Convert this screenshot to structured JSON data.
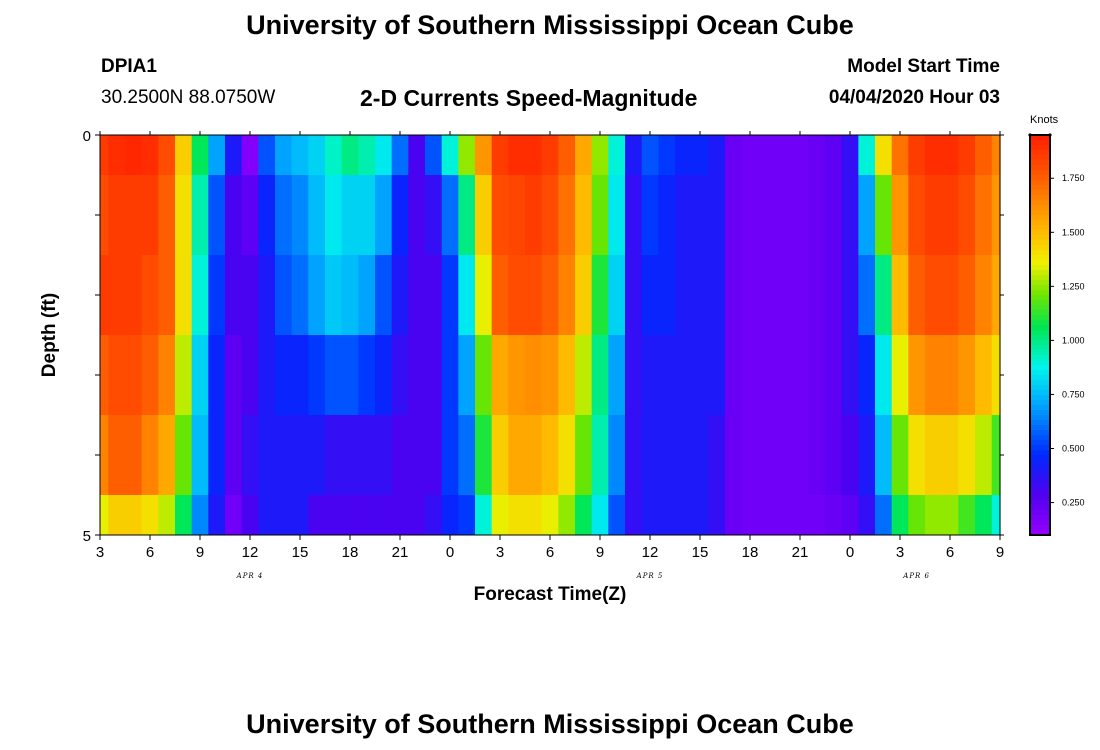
{
  "header": {
    "title": "University of Southern Mississippi Ocean Cube",
    "station": "DPIA1",
    "location": "30.2500N 88.0750W",
    "product": "2-D Currents Speed-Magnitude",
    "model_start_label": "Model Start Time",
    "model_start_time": "04/04/2020 Hour 03"
  },
  "footer": {
    "title": "University of Southern Mississippi Ocean Cube"
  },
  "colorbar": {
    "unit": "Knots",
    "ticks": [
      "0.250",
      "0.500",
      "0.750",
      "1.000",
      "1.250",
      "1.500",
      "1.750"
    ],
    "min": 0.1,
    "max": 1.95
  },
  "chart_data": {
    "type": "heatmap",
    "title": "2-D Currents Speed-Magnitude",
    "xlabel": "Forecast Time(Z)",
    "ylabel": "Depth (ft)",
    "ylim": [
      0,
      5
    ],
    "y_tick_labels": [
      "0",
      "5"
    ],
    "x_tick_labels": [
      "3",
      "6",
      "9",
      "12",
      "15",
      "18",
      "21",
      "0",
      "3",
      "6",
      "9",
      "12",
      "15",
      "18",
      "21",
      "0",
      "3",
      "6",
      "9"
    ],
    "date_labels": [
      {
        "text": "APR 4",
        "hour_index": 9
      },
      {
        "text": "APR 5",
        "hour_index": 33
      },
      {
        "text": "APR 6",
        "hour_index": 49
      }
    ],
    "x_hours_start": 3,
    "x_hours_end": 57,
    "depth_bins": [
      {
        "from": 0,
        "to": 0.5
      },
      {
        "from": 0.5,
        "to": 1.5
      },
      {
        "from": 1.5,
        "to": 2.5
      },
      {
        "from": 2.5,
        "to": 3.5
      },
      {
        "from": 3.5,
        "to": 4.5
      },
      {
        "from": 4.5,
        "to": 5
      }
    ],
    "speed_knots_by_hour": [
      [
        1.85,
        1.8,
        1.85,
        1.75,
        1.65,
        1.35
      ],
      [
        1.9,
        1.85,
        1.85,
        1.8,
        1.75,
        1.45
      ],
      [
        1.92,
        1.85,
        1.85,
        1.8,
        1.75,
        1.45
      ],
      [
        1.9,
        1.85,
        1.8,
        1.75,
        1.65,
        1.4
      ],
      [
        1.8,
        1.75,
        1.75,
        1.65,
        1.55,
        1.3
      ],
      [
        1.45,
        1.4,
        1.4,
        1.3,
        1.2,
        1.05
      ],
      [
        1.05,
        0.95,
        0.9,
        0.8,
        0.75,
        0.65
      ],
      [
        0.7,
        0.55,
        0.5,
        0.45,
        0.45,
        0.4
      ],
      [
        0.4,
        0.3,
        0.3,
        0.25,
        0.25,
        0.2
      ],
      [
        0.15,
        0.25,
        0.3,
        0.3,
        0.35,
        0.3
      ],
      [
        0.55,
        0.45,
        0.4,
        0.4,
        0.4,
        0.4
      ],
      [
        0.7,
        0.6,
        0.55,
        0.45,
        0.4,
        0.4
      ],
      [
        0.75,
        0.65,
        0.6,
        0.45,
        0.4,
        0.4
      ],
      [
        0.8,
        0.75,
        0.7,
        0.5,
        0.4,
        0.3
      ],
      [
        0.92,
        0.85,
        0.78,
        0.55,
        0.35,
        0.3
      ],
      [
        1.0,
        0.8,
        0.75,
        0.55,
        0.35,
        0.3
      ],
      [
        0.95,
        0.8,
        0.7,
        0.5,
        0.35,
        0.3
      ],
      [
        0.85,
        0.7,
        0.55,
        0.45,
        0.35,
        0.3
      ],
      [
        0.6,
        0.45,
        0.4,
        0.35,
        0.3,
        0.3
      ],
      [
        0.3,
        0.3,
        0.3,
        0.3,
        0.3,
        0.3
      ],
      [
        0.55,
        0.35,
        0.3,
        0.3,
        0.3,
        0.35
      ],
      [
        0.9,
        0.6,
        0.5,
        0.5,
        0.5,
        0.45
      ],
      [
        1.25,
        1.0,
        0.85,
        0.7,
        0.6,
        0.5
      ],
      [
        1.6,
        1.45,
        1.35,
        1.2,
        1.1,
        0.9
      ],
      [
        1.85,
        1.8,
        1.75,
        1.55,
        1.45,
        1.35
      ],
      [
        1.9,
        1.82,
        1.8,
        1.6,
        1.55,
        1.4
      ],
      [
        1.9,
        1.85,
        1.8,
        1.62,
        1.55,
        1.4
      ],
      [
        1.85,
        1.8,
        1.75,
        1.6,
        1.5,
        1.35
      ],
      [
        1.75,
        1.7,
        1.65,
        1.5,
        1.4,
        1.25
      ],
      [
        1.55,
        1.5,
        1.45,
        1.3,
        1.2,
        1.05
      ],
      [
        1.25,
        1.2,
        1.1,
        1.0,
        0.95,
        0.85
      ],
      [
        0.9,
        0.85,
        0.8,
        0.7,
        0.65,
        0.55
      ],
      [
        0.4,
        0.35,
        0.35,
        0.35,
        0.35,
        0.35
      ],
      [
        0.55,
        0.5,
        0.45,
        0.4,
        0.4,
        0.4
      ],
      [
        0.5,
        0.45,
        0.45,
        0.4,
        0.4,
        0.4
      ],
      [
        0.45,
        0.4,
        0.4,
        0.4,
        0.4,
        0.4
      ],
      [
        0.45,
        0.4,
        0.4,
        0.4,
        0.4,
        0.4
      ],
      [
        0.4,
        0.4,
        0.4,
        0.4,
        0.35,
        0.35
      ],
      [
        0.22,
        0.22,
        0.22,
        0.22,
        0.22,
        0.22
      ],
      [
        0.2,
        0.2,
        0.2,
        0.2,
        0.2,
        0.2
      ],
      [
        0.2,
        0.2,
        0.2,
        0.2,
        0.2,
        0.2
      ],
      [
        0.2,
        0.2,
        0.2,
        0.2,
        0.2,
        0.2
      ],
      [
        0.2,
        0.2,
        0.2,
        0.2,
        0.2,
        0.2
      ],
      [
        0.22,
        0.22,
        0.22,
        0.22,
        0.22,
        0.2
      ],
      [
        0.25,
        0.25,
        0.25,
        0.25,
        0.25,
        0.22
      ],
      [
        0.35,
        0.35,
        0.35,
        0.35,
        0.3,
        0.25
      ],
      [
        0.9,
        0.7,
        0.6,
        0.45,
        0.4,
        0.35
      ],
      [
        1.4,
        1.2,
        1.0,
        0.85,
        0.75,
        0.6
      ],
      [
        1.7,
        1.6,
        1.5,
        1.35,
        1.2,
        1.05
      ],
      [
        1.85,
        1.8,
        1.75,
        1.6,
        1.4,
        1.2
      ],
      [
        1.9,
        1.85,
        1.8,
        1.65,
        1.45,
        1.25
      ],
      [
        1.9,
        1.85,
        1.8,
        1.65,
        1.45,
        1.25
      ],
      [
        1.85,
        1.8,
        1.75,
        1.6,
        1.4,
        1.15
      ],
      [
        1.75,
        1.7,
        1.65,
        1.5,
        1.3,
        1.05
      ],
      [
        1.65,
        1.6,
        1.55,
        1.4,
        1.15,
        0.9
      ]
    ]
  }
}
